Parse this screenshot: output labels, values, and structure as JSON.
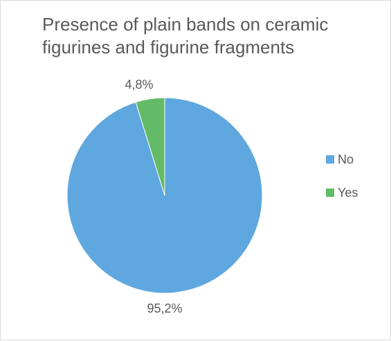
{
  "chart_data": {
    "type": "pie",
    "title": "Presence of plain bands on ceramic figurines and figurine fragments",
    "title_lines": [
      "Presence of plain bands on ceramic",
      "figurines and figurine fragments"
    ],
    "categories": [
      "No",
      "Yes"
    ],
    "values": [
      95.2,
      4.8
    ],
    "data_labels": [
      "95,2%",
      "4,8%"
    ],
    "colors": [
      "#5fa7df",
      "#63bb67"
    ],
    "legend_placement": "right"
  }
}
